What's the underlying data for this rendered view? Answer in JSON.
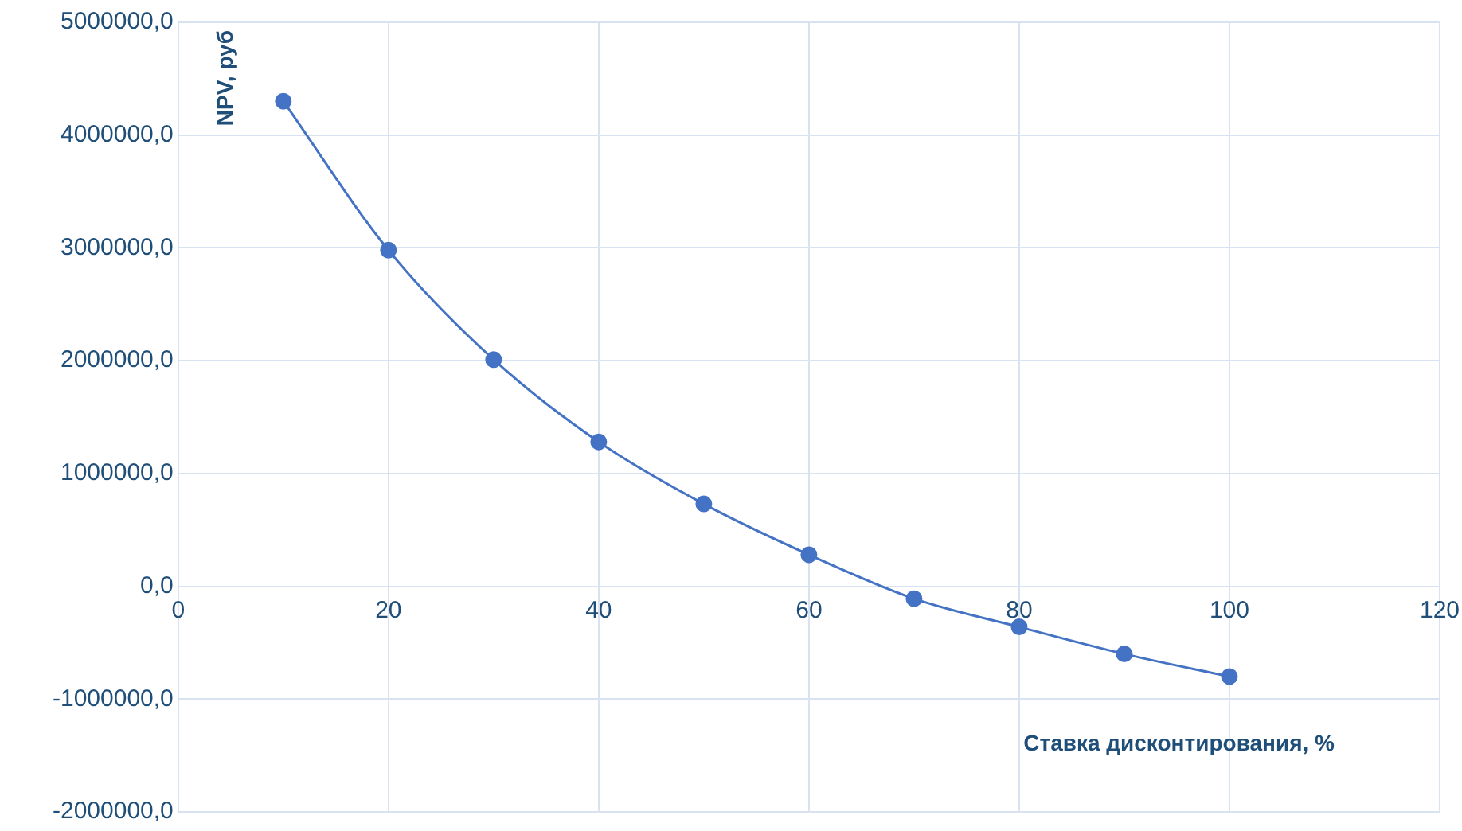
{
  "chart_data": {
    "type": "line",
    "xlabel": "Ставка дисконтирования, %",
    "ylabel": "NPV, руб",
    "x": [
      10,
      20,
      30,
      40,
      50,
      60,
      70,
      80,
      90,
      100
    ],
    "series": [
      {
        "color": "#4472c4",
        "values": [
          4300000,
          2980000,
          2010000,
          1280000,
          730000,
          280000,
          -110000,
          -360000,
          -600000,
          -800000
        ]
      }
    ],
    "xlim": [
      0,
      120
    ],
    "xticks": [
      0,
      20,
      40,
      60,
      80,
      100,
      120
    ],
    "ylim": [
      -2000000,
      5000000
    ],
    "yticks": [
      {
        "value": -2000000,
        "label": "-2000000,0"
      },
      {
        "value": -1000000,
        "label": "-1000000,0"
      },
      {
        "value": 0,
        "label": "0,0"
      },
      {
        "value": 1000000,
        "label": "1000000,0"
      },
      {
        "value": 2000000,
        "label": "2000000,0"
      },
      {
        "value": 3000000,
        "label": "3000000,0"
      },
      {
        "value": 4000000,
        "label": "4000000,0"
      },
      {
        "value": 5000000,
        "label": "5000000,0"
      }
    ],
    "grid": true,
    "marker": "circle",
    "line_style": "solid"
  }
}
